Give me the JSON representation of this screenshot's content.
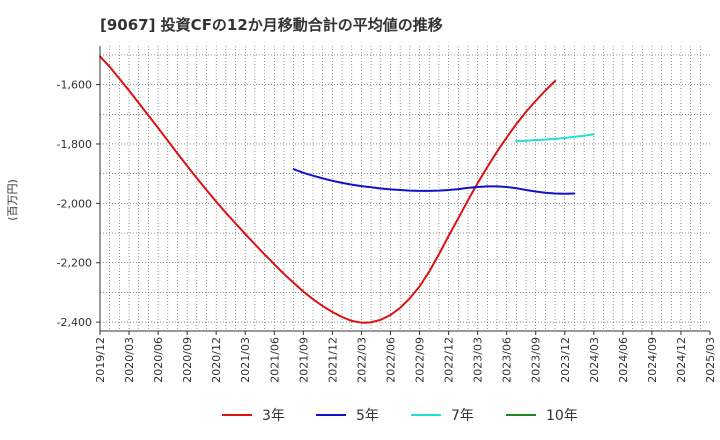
{
  "chart_data": {
    "type": "line",
    "title": "[9067]  投資CFの12か月移動合計の平均値の推移",
    "ylabel": "(百万円)",
    "xlabel": "",
    "ylim": [
      -2430,
      -1470
    ],
    "yticks": [
      -1600,
      -1800,
      -2000,
      -2200,
      -2400
    ],
    "ytick_labels": [
      "-1,600",
      "-1,800",
      "-2,000",
      "-2,200",
      "-2,400"
    ],
    "x_tick_labels": [
      "2019/12",
      "2020/03",
      "2020/06",
      "2020/09",
      "2020/12",
      "2021/03",
      "2021/06",
      "2021/09",
      "2021/12",
      "2022/03",
      "2022/06",
      "2022/09",
      "2022/12",
      "2023/03",
      "2023/06",
      "2023/09",
      "2023/12",
      "2024/03",
      "2024/06",
      "2024/09",
      "2024/12",
      "2025/03"
    ],
    "grid": true,
    "legend_position": "bottom",
    "series": [
      {
        "name": "3年",
        "color": "#dd1111",
        "start": "2019/12",
        "values": [
          -1505,
          -1540,
          -1580,
          -1620,
          -1662,
          -1704,
          -1746,
          -1789,
          -1832,
          -1874,
          -1915,
          -1955,
          -1994,
          -2032,
          -2068,
          -2103,
          -2138,
          -2172,
          -2205,
          -2238,
          -2268,
          -2297,
          -2323,
          -2346,
          -2366,
          -2383,
          -2396,
          -2402,
          -2401,
          -2392,
          -2376,
          -2352,
          -2320,
          -2280,
          -2230,
          -2172,
          -2110,
          -2050,
          -1990,
          -1932,
          -1878,
          -1826,
          -1778,
          -1733,
          -1692,
          -1655,
          -1620,
          -1588
        ]
      },
      {
        "name": "5年",
        "color": "#1111cc",
        "start": "2021/08",
        "values": [
          -1885,
          -1897,
          -1907,
          -1916,
          -1924,
          -1931,
          -1937,
          -1942,
          -1946,
          -1950,
          -1953,
          -1955,
          -1957,
          -1958,
          -1958,
          -1957,
          -1955,
          -1952,
          -1948,
          -1945,
          -1943,
          -1943,
          -1945,
          -1949,
          -1955,
          -1960,
          -1964,
          -1967,
          -1968,
          -1967
        ]
      },
      {
        "name": "7年",
        "color": "#22dddd",
        "start": "2023/07",
        "values": [
          -1790,
          -1789,
          -1787,
          -1785,
          -1783,
          -1780,
          -1776,
          -1772,
          -1767
        ]
      },
      {
        "name": "10年",
        "color": "#228822",
        "start": "2019/12",
        "values": []
      }
    ]
  }
}
